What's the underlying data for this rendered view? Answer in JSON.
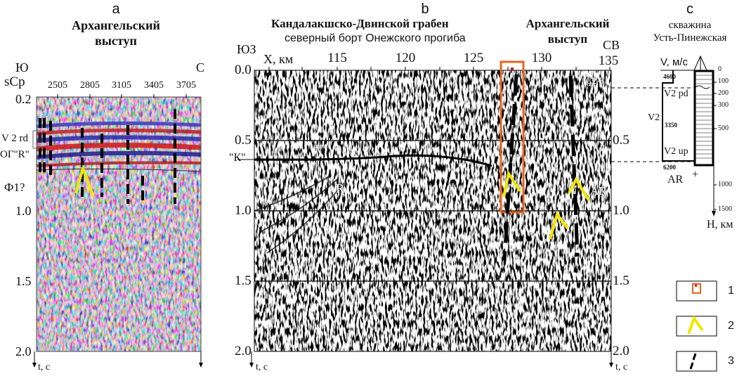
{
  "panel_a": {
    "letter": "а",
    "title_line1": "Архангельский",
    "title_line2": "выступ",
    "dir_left": "Ю",
    "dir_right": "С",
    "x_axis_label": "sCp",
    "x_ticks": [
      "2505",
      "2805",
      "3105",
      "3405",
      "3705"
    ],
    "y_ticks": [
      "0.2",
      "1.0",
      "1.5",
      "2.0"
    ],
    "horizon_labels": {
      "v2rd": "V 2 rd",
      "og_r": "ОГ\"R\"",
      "f1": "Ф1?"
    },
    "y_axis_label": "t, с"
  },
  "panel_b": {
    "letter": "b",
    "title_left": "Кандалакшско-Двинской грабен",
    "subtitle_left": "северный борт Онежского прогиба",
    "title_right_line1": "Архангельский",
    "title_right_line2": "выступ",
    "dir_left": "ЮЗ",
    "dir_right": "СВ",
    "x_axis_label": "X, км",
    "x_ticks": [
      "115",
      "120",
      "125",
      "130",
      "135"
    ],
    "y_ticks": [
      "0.0",
      "0.5",
      "1.0",
      "1.5",
      "2.0"
    ],
    "horizon_labels": {
      "k": "\"К\"",
      "v_left": "V",
      "r": "R",
      "v_right": "V",
      "ar": "AR",
      "c23": "C2-3"
    },
    "y_axis_label": "t, с"
  },
  "panel_c": {
    "letter": "с",
    "title_line1": "скважина",
    "title_line2": "Усть-Пинежская",
    "v_label": "V, м/с",
    "depth_ticks": [
      "0",
      "100",
      "200",
      "300",
      "500",
      "1000",
      "1500"
    ],
    "depth_label": "H, км",
    "velocities": [
      "4600",
      "3350",
      "6200"
    ],
    "units": {
      "v2pd": "V2 pd",
      "v2": "V2",
      "v2up": "V2 up",
      "ar": "AR"
    }
  },
  "legend": {
    "items": [
      {
        "num": "1",
        "icon": "red-well-box"
      },
      {
        "num": "2",
        "icon": "yellow-chevron"
      },
      {
        "num": "3",
        "icon": "black-dash"
      }
    ]
  },
  "colors": {
    "highlight_box": "#e8641e",
    "chevron": "#f2e600",
    "fault": "#000000"
  }
}
